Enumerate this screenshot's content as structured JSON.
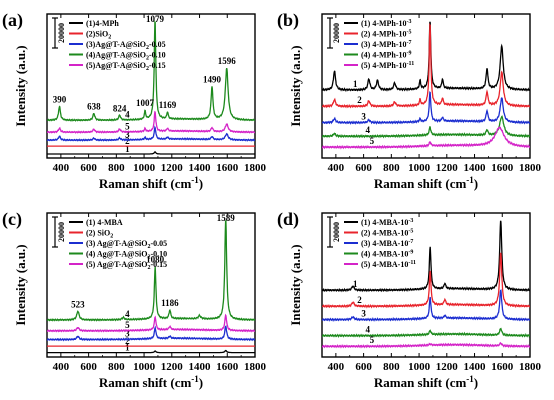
{
  "chart_data": [
    {
      "panel": "(a)",
      "type": "line",
      "xlabel": "Raman shift (cm",
      "xlabel_sup": "-1",
      "xlabel_tail": ")",
      "ylabel": "Intensity (a.u.)",
      "xlim": [
        300,
        1800
      ],
      "x_ticks": [
        "400",
        "600",
        "800",
        "1000",
        "1200",
        "1400",
        "1600",
        "1800"
      ],
      "scale_bar": "20000",
      "legend": [
        "(1)4-MPh",
        "(2)SiO",
        "(3)Ag@T-A@SiO",
        "(4)Ag@T-A@SiO",
        "(5)Ag@T-A@SiO"
      ],
      "legend_sub": [
        "",
        "2",
        "2",
        "2",
        "2"
      ],
      "legend_tail": [
        "",
        "",
        "-0.05",
        "-0.10",
        "-0.15"
      ],
      "curve_labels": [
        "1",
        "2",
        "3",
        "4",
        "5"
      ],
      "peak_labels": [
        {
          "x": 390,
          "text": "390"
        },
        {
          "x": 638,
          "text": "638"
        },
        {
          "x": 824,
          "text": "824"
        },
        {
          "x": 1007,
          "text": "1007"
        },
        {
          "x": 1079,
          "text": "1079"
        },
        {
          "x": 1169,
          "text": "1169"
        },
        {
          "x": 1490,
          "text": "1490"
        },
        {
          "x": 1596,
          "text": "1596"
        }
      ],
      "series": [
        {
          "name": "(1)4-MPh",
          "color": "#000000",
          "baseline": 0,
          "peaks": [
            [
              1079,
              2.2,
              7
            ]
          ],
          "flat": true
        },
        {
          "name": "(2)SiO2",
          "color": "#e8242c",
          "baseline": 8,
          "peaks": [],
          "flat": true
        },
        {
          "name": "(3)Ag@T-A@SiO2-0.05",
          "color": "#1c2ed0",
          "baseline": 14,
          "peaks": [
            [
              390,
              4,
              8
            ],
            [
              638,
              2,
              8
            ],
            [
              824,
              2,
              8
            ],
            [
              1007,
              2,
              6
            ],
            [
              1079,
              12,
              7
            ],
            [
              1169,
              2,
              6
            ],
            [
              1490,
              3,
              8
            ],
            [
              1596,
              6,
              12
            ]
          ]
        },
        {
          "name": "(4)Ag@T-A@SiO2-0.10",
          "color": "#1d8a1d",
          "baseline": 34,
          "peaks": [
            [
              390,
              14,
              8
            ],
            [
              638,
              7,
              8
            ],
            [
              824,
              5,
              8
            ],
            [
              1007,
              8,
              6
            ],
            [
              1079,
              100,
              7
            ],
            [
              1169,
              7,
              6
            ],
            [
              1490,
              33,
              8
            ],
            [
              1596,
              52,
              12
            ]
          ]
        },
        {
          "name": "(5)Ag@T-A@SiO2-0.15",
          "color": "#d424c8",
          "baseline": 22,
          "peaks": [
            [
              390,
              4,
              8
            ],
            [
              638,
              3,
              8
            ],
            [
              824,
              3,
              8
            ],
            [
              1007,
              3,
              6
            ],
            [
              1079,
              20,
              7
            ],
            [
              1169,
              3,
              6
            ],
            [
              1490,
              4,
              8
            ],
            [
              1596,
              8,
              12
            ]
          ]
        }
      ]
    },
    {
      "panel": "(b)",
      "type": "line",
      "xlabel": "Raman shift (cm",
      "xlabel_sup": "-1",
      "xlabel_tail": ")",
      "ylabel": "Intensity (a.u.)",
      "xlim": [
        300,
        1800
      ],
      "x_ticks": [
        "400",
        "600",
        "800",
        "1000",
        "1200",
        "1400",
        "1600",
        "1800"
      ],
      "scale_bar": "20000",
      "legend": [
        "(1) 4-MPh-10",
        "(2) 4-MPh-10",
        "(3) 4-MPh-10",
        "(4) 4-MPh-10",
        "(5) 4-MPh-10"
      ],
      "legend_sup": [
        "-3",
        "-5",
        "-7",
        "-9",
        "-11"
      ],
      "curve_labels": [
        "1",
        "2",
        "3",
        "4",
        "5"
      ],
      "series": [
        {
          "name": "(1) 4-MPh-10-3",
          "color": "#000000",
          "baseline": 46,
          "peaks": [
            [
              390,
              14,
              9
            ],
            [
              638,
              8,
              9
            ],
            [
              700,
              7,
              9
            ],
            [
              824,
              5,
              9
            ],
            [
              1007,
              6,
              6
            ],
            [
              1079,
              50,
              7
            ],
            [
              1169,
              7,
              6
            ],
            [
              1490,
              15,
              8
            ],
            [
              1596,
              32,
              13
            ]
          ]
        },
        {
          "name": "(2) 4-MPh-10-5",
          "color": "#e8242c",
          "baseline": 34,
          "peaks": [
            [
              390,
              5,
              9
            ],
            [
              638,
              4,
              9
            ],
            [
              824,
              3,
              9
            ],
            [
              1007,
              4,
              6
            ],
            [
              1079,
              60,
              7
            ],
            [
              1169,
              5,
              6
            ],
            [
              1490,
              10,
              8
            ],
            [
              1596,
              25,
              13
            ]
          ]
        },
        {
          "name": "(3) 4-MPh-10-7",
          "color": "#1c2ed0",
          "baseline": 22,
          "peaks": [
            [
              390,
              3,
              9
            ],
            [
              638,
              2,
              9
            ],
            [
              1007,
              2,
              6
            ],
            [
              1079,
              22,
              7
            ],
            [
              1169,
              3,
              6
            ],
            [
              1490,
              8,
              8
            ],
            [
              1596,
              18,
              13
            ]
          ]
        },
        {
          "name": "(4) 4-MPh-10-9",
          "color": "#1d8a1d",
          "baseline": 12,
          "peaks": [
            [
              390,
              2,
              9
            ],
            [
              1079,
              6,
              7
            ],
            [
              1490,
              4,
              8
            ],
            [
              1596,
              14,
              18
            ]
          ]
        },
        {
          "name": "(5) 4-MPh-10-11",
          "color": "#d424c8",
          "baseline": 4,
          "peaks": [
            [
              1079,
              3,
              7
            ],
            [
              1580,
              14,
              40
            ]
          ]
        }
      ]
    },
    {
      "panel": "(c)",
      "type": "line",
      "xlabel": "Raman shift (cm",
      "xlabel_sup": "-1",
      "xlabel_tail": ")",
      "ylabel": "Intensity (a.u.)",
      "xlim": [
        300,
        1800
      ],
      "x_ticks": [
        "400",
        "600",
        "800",
        "1000",
        "1200",
        "1400",
        "1600",
        "1800"
      ],
      "scale_bar": "20000",
      "legend": [
        "(1) 4-MBA",
        "(2) SiO",
        "(3) Ag@T-A@SiO",
        "(4) Ag@T-A@SiO",
        "(5) Ag@T-A@SiO"
      ],
      "legend_sub": [
        "",
        "2",
        "2",
        "2",
        "2"
      ],
      "legend_tail": [
        "",
        "",
        "-0.05",
        "-0.10",
        "-0.15"
      ],
      "curve_labels": [
        "1",
        "2",
        "3",
        "4",
        "5"
      ],
      "peak_labels": [
        {
          "x": 523,
          "text": "523"
        },
        {
          "x": 1080,
          "text": "1080"
        },
        {
          "x": 1186,
          "text": "1186"
        },
        {
          "x": 1589,
          "text": "1589"
        }
      ],
      "series": [
        {
          "name": "(1) 4-MBA",
          "color": "#000000",
          "baseline": 0,
          "peaks": [
            [
              1080,
              1.5,
              7
            ],
            [
              1589,
              2,
              8
            ]
          ],
          "flat": true
        },
        {
          "name": "(2) SiO2",
          "color": "#e8242c",
          "baseline": 6,
          "peaks": [],
          "flat": true
        },
        {
          "name": "(3) Ag@T-A@SiO2-0.05",
          "color": "#1c2ed0",
          "baseline": 12,
          "peaks": [
            [
              523,
              3,
              10
            ],
            [
              1080,
              10,
              7
            ],
            [
              1186,
              2,
              7
            ],
            [
              1589,
              12,
              8
            ]
          ]
        },
        {
          "name": "(4) Ag@T-A@SiO2-0.10",
          "color": "#1d8a1d",
          "baseline": 30,
          "peaks": [
            [
              523,
              8,
              10
            ],
            [
              850,
              2,
              10
            ],
            [
              1080,
              48,
              7
            ],
            [
              1186,
              8,
              7
            ],
            [
              1400,
              3,
              10
            ],
            [
              1589,
              92,
              8
            ]
          ]
        },
        {
          "name": "(5) Ag@T-A@SiO2-0.15",
          "color": "#d424c8",
          "baseline": 20,
          "peaks": [
            [
              523,
              3,
              10
            ],
            [
              1080,
              12,
              7
            ],
            [
              1186,
              3,
              7
            ],
            [
              1589,
              14,
              8
            ]
          ]
        }
      ]
    },
    {
      "panel": "(d)",
      "type": "line",
      "xlabel": "Raman shift (cm",
      "xlabel_sup": "-1",
      "xlabel_tail": ")",
      "ylabel": "Intensity (a.u.)",
      "xlim": [
        300,
        1800
      ],
      "x_ticks": [
        "400",
        "600",
        "800",
        "1000",
        "1200",
        "1400",
        "1600",
        "1800"
      ],
      "scale_bar": "20000",
      "legend": [
        "(1) 4-MBA-10",
        "(2) 4-MBA-10",
        "(3) 4-MBA-10",
        "(4) 4-MBA-10",
        "(5) 4-MBA-10"
      ],
      "legend_sup": [
        "-3",
        "-5",
        "-7",
        "-9",
        "-11"
      ],
      "curve_labels": [
        "1",
        "2",
        "3",
        "4",
        "5"
      ],
      "series": [
        {
          "name": "(1) 4-MBA-10-3",
          "color": "#000000",
          "baseline": 46,
          "peaks": [
            [
              523,
              3,
              10
            ],
            [
              1080,
              32,
              7
            ],
            [
              1186,
              4,
              7
            ],
            [
              1589,
              52,
              9
            ]
          ]
        },
        {
          "name": "(2) 4-MBA-10-5",
          "color": "#e8242c",
          "baseline": 34,
          "peaks": [
            [
              523,
              3,
              10
            ],
            [
              1080,
              26,
              7
            ],
            [
              1186,
              4,
              7
            ],
            [
              1589,
              40,
              9
            ]
          ]
        },
        {
          "name": "(3) 4-MBA-10-7",
          "color": "#1c2ed0",
          "baseline": 24,
          "peaks": [
            [
              523,
              2,
              10
            ],
            [
              1080,
              16,
              7
            ],
            [
              1186,
              2,
              7
            ],
            [
              1589,
              22,
              9
            ]
          ]
        },
        {
          "name": "(4) 4-MBA-10-9",
          "color": "#1d8a1d",
          "baseline": 12,
          "peaks": [
            [
              1080,
              3,
              7
            ],
            [
              1589,
              5,
              9
            ]
          ]
        },
        {
          "name": "(5) 4-MBA-10-11",
          "color": "#d424c8",
          "baseline": 4,
          "peaks": [
            [
              1080,
              1,
              7
            ],
            [
              1589,
              2,
              9
            ]
          ]
        }
      ]
    }
  ]
}
